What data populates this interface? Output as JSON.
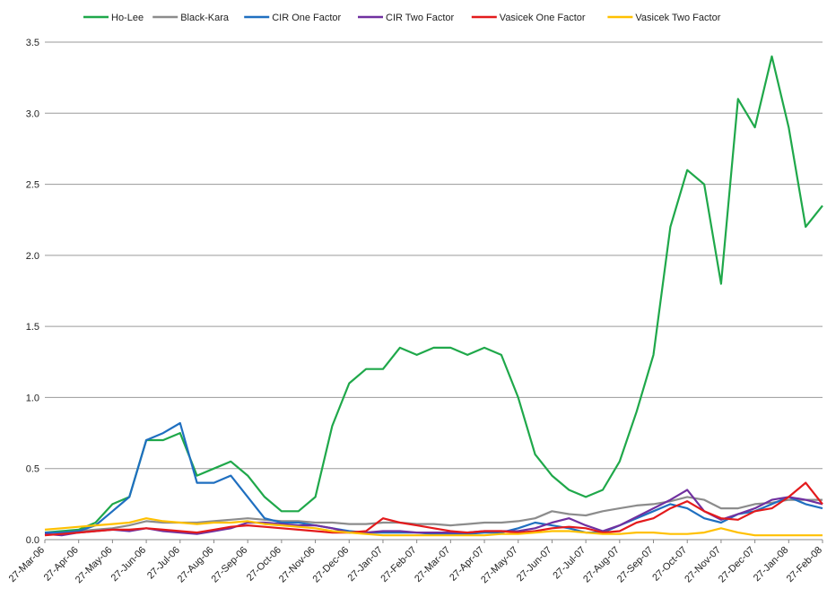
{
  "chart_data": {
    "type": "line",
    "categories": [
      "27-Mar-06",
      null,
      "27-Apr-06",
      null,
      "27-May-06",
      null,
      "27-Jun-06",
      null,
      "27-Jul-06",
      null,
      "27-Aug-06",
      null,
      "27-Sep-06",
      null,
      "27-Oct-06",
      null,
      "27-Nov-06",
      null,
      "27-Dec-06",
      null,
      "27-Jan-07",
      null,
      "27-Feb-07",
      null,
      "27-Mar-07",
      null,
      "27-Apr-07",
      null,
      "27-May-07",
      null,
      "27-Jun-07",
      null,
      "27-Jul-07",
      null,
      "27-Aug-07",
      null,
      "27-Sep-07",
      null,
      "27-Oct-07",
      null,
      "27-Nov-07",
      null,
      "27-Dec-07",
      null,
      "27-Jan-08",
      null,
      "27-Feb-08"
    ],
    "series": [
      {
        "name": "Ho-Lee",
        "color": "#1fa84a",
        "values": [
          0.05,
          0.06,
          0.07,
          0.12,
          0.25,
          0.3,
          0.7,
          0.7,
          0.75,
          0.45,
          0.5,
          0.55,
          0.45,
          0.3,
          0.2,
          0.2,
          0.3,
          0.8,
          1.1,
          1.2,
          1.2,
          1.35,
          1.3,
          1.35,
          1.35,
          1.3,
          1.35,
          1.3,
          1.0,
          0.6,
          0.45,
          0.35,
          0.3,
          0.35,
          0.55,
          0.9,
          1.3,
          2.2,
          2.6,
          2.5,
          1.8,
          3.1,
          2.9,
          3.4,
          2.9,
          2.2,
          2.35
        ]
      },
      {
        "name": "Black-Kara",
        "color": "#8c8c8c",
        "values": [
          0.05,
          0.05,
          0.06,
          0.07,
          0.08,
          0.1,
          0.13,
          0.12,
          0.12,
          0.12,
          0.13,
          0.14,
          0.15,
          0.14,
          0.13,
          0.13,
          0.12,
          0.12,
          0.11,
          0.11,
          0.12,
          0.12,
          0.11,
          0.11,
          0.1,
          0.11,
          0.12,
          0.12,
          0.13,
          0.15,
          0.2,
          0.18,
          0.17,
          0.2,
          0.22,
          0.24,
          0.25,
          0.27,
          0.3,
          0.28,
          0.22,
          0.22,
          0.25,
          0.26,
          0.28,
          0.28,
          0.28
        ]
      },
      {
        "name": "CIR One Factor",
        "color": "#1f6fc0",
        "values": [
          0.05,
          0.05,
          0.06,
          0.1,
          0.2,
          0.3,
          0.7,
          0.75,
          0.82,
          0.4,
          0.4,
          0.45,
          0.3,
          0.15,
          0.12,
          0.12,
          0.1,
          0.08,
          0.06,
          0.05,
          0.05,
          0.05,
          0.05,
          0.04,
          0.04,
          0.04,
          0.05,
          0.05,
          0.08,
          0.12,
          0.1,
          0.08,
          0.05,
          0.05,
          0.1,
          0.15,
          0.2,
          0.25,
          0.22,
          0.15,
          0.12,
          0.18,
          0.2,
          0.25,
          0.3,
          0.25,
          0.22
        ]
      },
      {
        "name": "CIR Two Factor",
        "color": "#7030a0",
        "values": [
          0.04,
          0.03,
          0.05,
          0.06,
          0.07,
          0.06,
          0.08,
          0.06,
          0.05,
          0.04,
          0.06,
          0.08,
          0.12,
          0.12,
          0.11,
          0.1,
          0.1,
          0.08,
          0.05,
          0.05,
          0.06,
          0.06,
          0.05,
          0.05,
          0.05,
          0.05,
          0.06,
          0.06,
          0.06,
          0.08,
          0.12,
          0.15,
          0.1,
          0.06,
          0.1,
          0.16,
          0.22,
          0.28,
          0.35,
          0.2,
          0.14,
          0.18,
          0.22,
          0.28,
          0.3,
          0.28,
          0.25
        ]
      },
      {
        "name": "Vasicek One Factor",
        "color": "#e31a1c",
        "values": [
          0.03,
          0.04,
          0.05,
          0.06,
          0.07,
          0.07,
          0.08,
          0.07,
          0.06,
          0.05,
          0.07,
          0.09,
          0.1,
          0.09,
          0.08,
          0.07,
          0.06,
          0.05,
          0.05,
          0.06,
          0.15,
          0.12,
          0.1,
          0.08,
          0.06,
          0.05,
          0.06,
          0.06,
          0.05,
          0.06,
          0.08,
          0.09,
          0.08,
          0.05,
          0.06,
          0.12,
          0.15,
          0.22,
          0.27,
          0.2,
          0.15,
          0.14,
          0.2,
          0.22,
          0.3,
          0.4,
          0.25
        ]
      },
      {
        "name": "Vasicek Two Factor",
        "color": "#ffc000",
        "values": [
          0.07,
          0.08,
          0.09,
          0.1,
          0.11,
          0.12,
          0.15,
          0.13,
          0.12,
          0.11,
          0.12,
          0.12,
          0.13,
          0.11,
          0.1,
          0.09,
          0.08,
          0.06,
          0.05,
          0.04,
          0.03,
          0.03,
          0.03,
          0.03,
          0.03,
          0.03,
          0.03,
          0.04,
          0.04,
          0.05,
          0.06,
          0.06,
          0.05,
          0.04,
          0.04,
          0.05,
          0.05,
          0.04,
          0.04,
          0.05,
          0.08,
          0.05,
          0.03,
          0.03,
          0.03,
          0.03,
          0.03
        ]
      }
    ],
    "ylim": [
      0,
      3.5
    ],
    "yticks": [
      {
        "value": 0,
        "label": "0.0"
      },
      {
        "value": 0.5,
        "label": "0.5"
      },
      {
        "value": 1,
        "label": "1.0"
      },
      {
        "value": 1.5,
        "label": "1.5"
      },
      {
        "value": 2,
        "label": "2.0"
      },
      {
        "value": 2.5,
        "label": "2.5"
      },
      {
        "value": 3,
        "label": "3.0"
      },
      {
        "value": 3.5,
        "label": "3.5"
      }
    ],
    "grid": true,
    "legend": "top"
  }
}
